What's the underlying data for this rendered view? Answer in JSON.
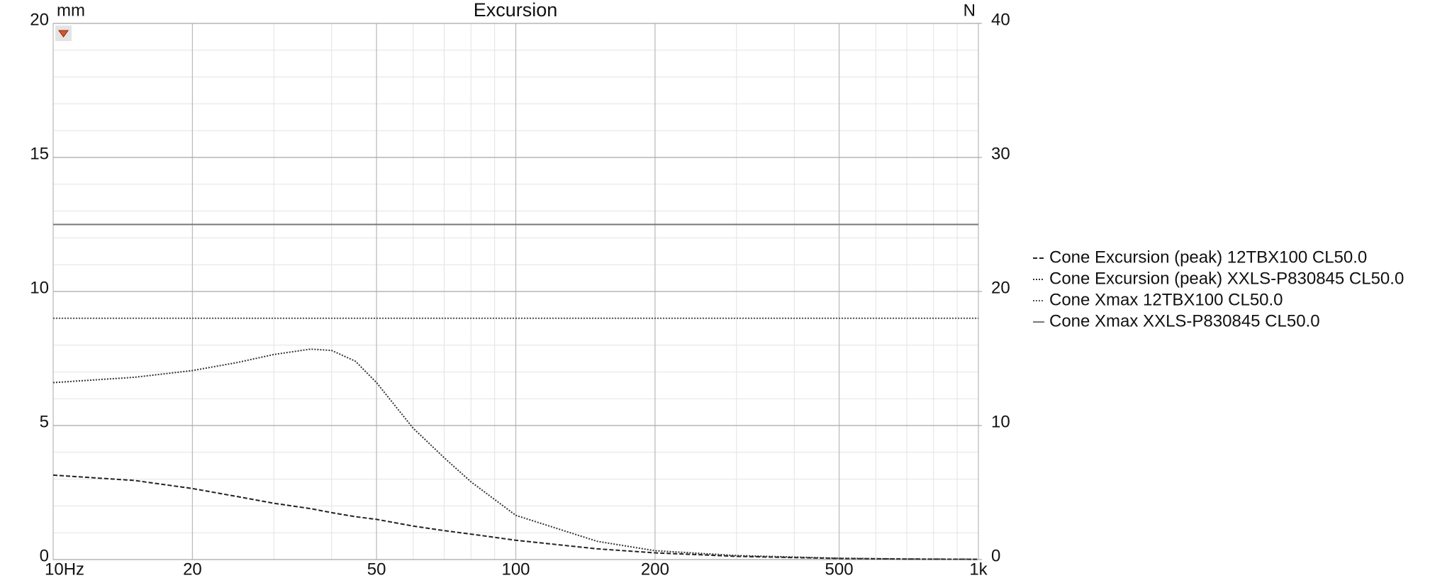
{
  "chart_data": {
    "type": "line",
    "title": "Excursion",
    "ylabel": "mm",
    "y2label": "N",
    "xscale": "log",
    "grid": true,
    "legend": "right",
    "x": [
      10,
      15,
      20,
      25,
      30,
      36,
      40,
      45,
      50,
      60,
      70,
      80,
      100,
      150,
      200,
      300,
      500,
      700,
      1000
    ],
    "xlim": [
      10,
      1000
    ],
    "xticks": [
      {
        "value": 10,
        "label": "10Hz"
      },
      20,
      50,
      100,
      200,
      500,
      {
        "value": 1000,
        "label": "1k"
      }
    ],
    "ylim": [
      0,
      20
    ],
    "yticks": [
      0,
      5,
      10,
      15,
      20
    ],
    "y2lim": [
      0,
      40
    ],
    "y2ticks": [
      0,
      10,
      20,
      30,
      40
    ],
    "series": [
      {
        "name": "Cone Excursion (peak) 12TBX100 CL50.0",
        "color": "#222222",
        "style": "dashed",
        "values": [
          3.15,
          2.95,
          2.65,
          2.35,
          2.1,
          1.9,
          1.75,
          1.6,
          1.5,
          1.25,
          1.08,
          0.95,
          0.72,
          0.4,
          0.25,
          0.12,
          0.04,
          0.02,
          0.01
        ]
      },
      {
        "name": "Cone Excursion (peak) XXLS-P830845 CL50.0",
        "color": "#333333",
        "style": "dotted",
        "values": [
          6.6,
          6.8,
          7.05,
          7.35,
          7.65,
          7.85,
          7.8,
          7.4,
          6.6,
          4.9,
          3.8,
          2.9,
          1.65,
          0.68,
          0.33,
          0.15,
          0.05,
          0.02,
          0.01
        ]
      },
      {
        "name": "Cone Xmax 12TBX100 CL50.0",
        "color": "#555555",
        "style": "dotted",
        "values": [
          9,
          9,
          9,
          9,
          9,
          9,
          9,
          9,
          9,
          9,
          9,
          9,
          9,
          9,
          9,
          9,
          9,
          9,
          9
        ]
      },
      {
        "name": "Cone Xmax XXLS-P830845 CL50.0",
        "color": "#777777",
        "style": "solid",
        "values": [
          12.5,
          12.5,
          12.5,
          12.5,
          12.5,
          12.5,
          12.5,
          12.5,
          12.5,
          12.5,
          12.5,
          12.5,
          12.5,
          12.5,
          12.5,
          12.5,
          12.5,
          12.5,
          12.5
        ]
      }
    ]
  }
}
